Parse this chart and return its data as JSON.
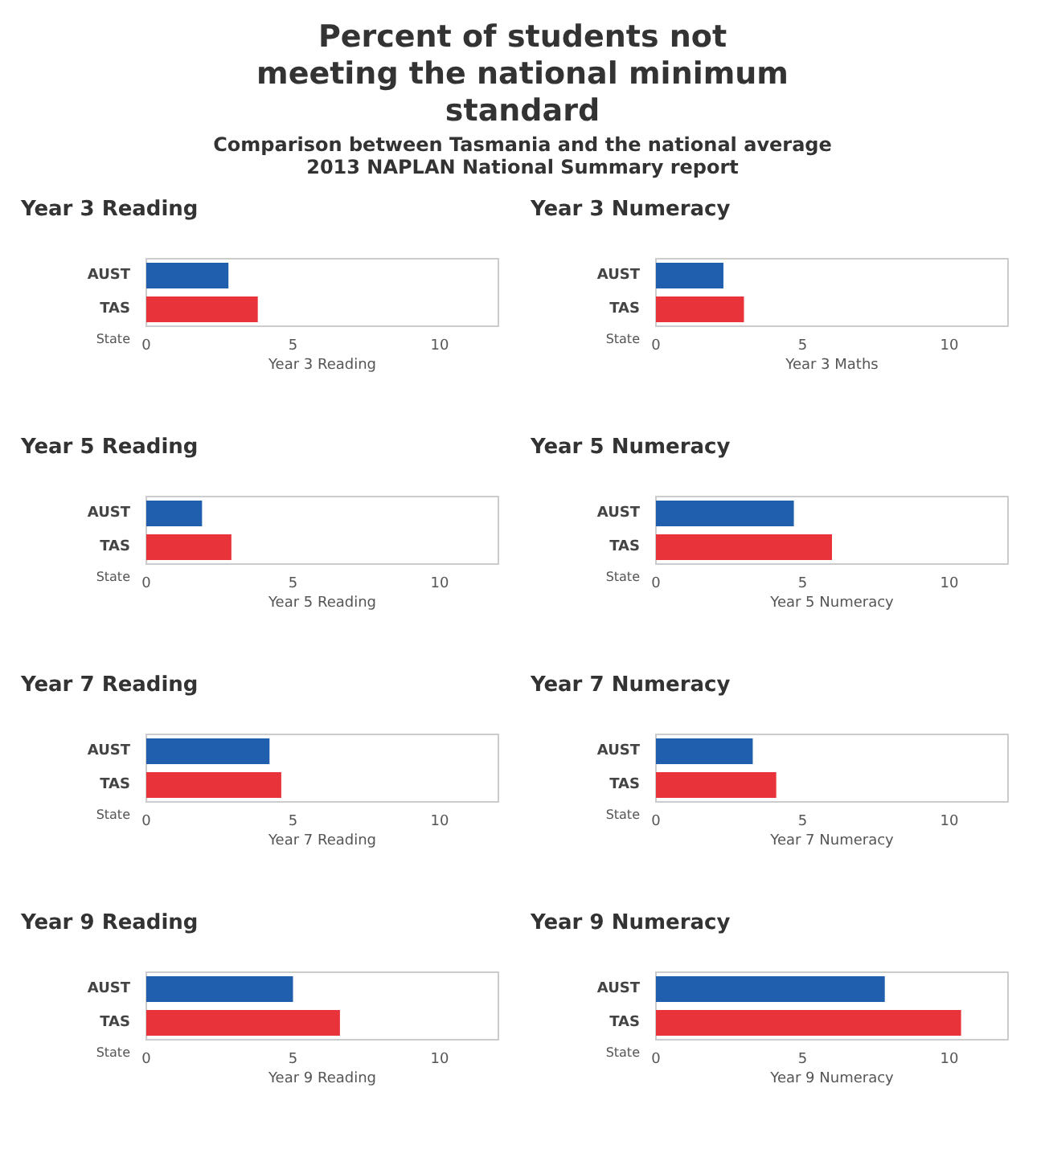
{
  "chart_data": [
    {
      "type": "other",
      "title": "Percent of students not meeting the national minimum standard",
      "subtitle": "Comparison between Tasmania and the national average",
      "annotations": [
        "2013 NAPLAN National Summary report"
      ]
    },
    {
      "type": "bar",
      "orientation": "horizontal",
      "title": "Year 3 Reading",
      "ylabel": "State",
      "xlabel": "Year 3 Reading",
      "categories": [
        "AUST",
        "TAS"
      ],
      "values": [
        2.8,
        3.8
      ],
      "colors": [
        "#1f5fad",
        "#e8333a"
      ],
      "xlim": [
        0,
        12
      ],
      "xticks": [
        0,
        5,
        10
      ]
    },
    {
      "type": "bar",
      "orientation": "horizontal",
      "title": "Year 3 Numeracy",
      "ylabel": "State",
      "xlabel": "Year 3 Maths",
      "categories": [
        "AUST",
        "TAS"
      ],
      "values": [
        2.3,
        3.0
      ],
      "colors": [
        "#1f5fad",
        "#e8333a"
      ],
      "xlim": [
        0,
        12
      ],
      "xticks": [
        0,
        5,
        10
      ]
    },
    {
      "type": "bar",
      "orientation": "horizontal",
      "title": "Year 5 Reading",
      "ylabel": "State",
      "xlabel": "Year 5 Reading",
      "categories": [
        "AUST",
        "TAS"
      ],
      "values": [
        1.9,
        2.9
      ],
      "colors": [
        "#1f5fad",
        "#e8333a"
      ],
      "xlim": [
        0,
        12
      ],
      "xticks": [
        0,
        5,
        10
      ]
    },
    {
      "type": "bar",
      "orientation": "horizontal",
      "title": "Year 5 Numeracy",
      "ylabel": "State",
      "xlabel": "Year 5 Numeracy",
      "categories": [
        "AUST",
        "TAS"
      ],
      "values": [
        4.7,
        6.0
      ],
      "colors": [
        "#1f5fad",
        "#e8333a"
      ],
      "xlim": [
        0,
        12
      ],
      "xticks": [
        0,
        5,
        10
      ]
    },
    {
      "type": "bar",
      "orientation": "horizontal",
      "title": "Year 7 Reading",
      "ylabel": "State",
      "xlabel": "Year 7 Reading",
      "categories": [
        "AUST",
        "TAS"
      ],
      "values": [
        4.2,
        4.6
      ],
      "colors": [
        "#1f5fad",
        "#e8333a"
      ],
      "xlim": [
        0,
        12
      ],
      "xticks": [
        0,
        5,
        10
      ]
    },
    {
      "type": "bar",
      "orientation": "horizontal",
      "title": "Year 7 Numeracy",
      "ylabel": "State",
      "xlabel": "Year 7 Numeracy",
      "categories": [
        "AUST",
        "TAS"
      ],
      "values": [
        3.3,
        4.1
      ],
      "colors": [
        "#1f5fad",
        "#e8333a"
      ],
      "xlim": [
        0,
        12
      ],
      "xticks": [
        0,
        5,
        10
      ]
    },
    {
      "type": "bar",
      "orientation": "horizontal",
      "title": "Year 9 Reading",
      "ylabel": "State",
      "xlabel": "Year 9 Reading",
      "categories": [
        "AUST",
        "TAS"
      ],
      "values": [
        5.0,
        6.6
      ],
      "colors": [
        "#1f5fad",
        "#e8333a"
      ],
      "xlim": [
        0,
        12
      ],
      "xticks": [
        0,
        5,
        10
      ]
    },
    {
      "type": "bar",
      "orientation": "horizontal",
      "title": "Year 9 Numeracy",
      "ylabel": "State",
      "xlabel": "Year 9 Numeracy",
      "categories": [
        "AUST",
        "TAS"
      ],
      "values": [
        7.8,
        10.4
      ],
      "colors": [
        "#1f5fad",
        "#e8333a"
      ],
      "xlim": [
        0,
        12
      ],
      "xticks": [
        0,
        5,
        10
      ]
    }
  ]
}
